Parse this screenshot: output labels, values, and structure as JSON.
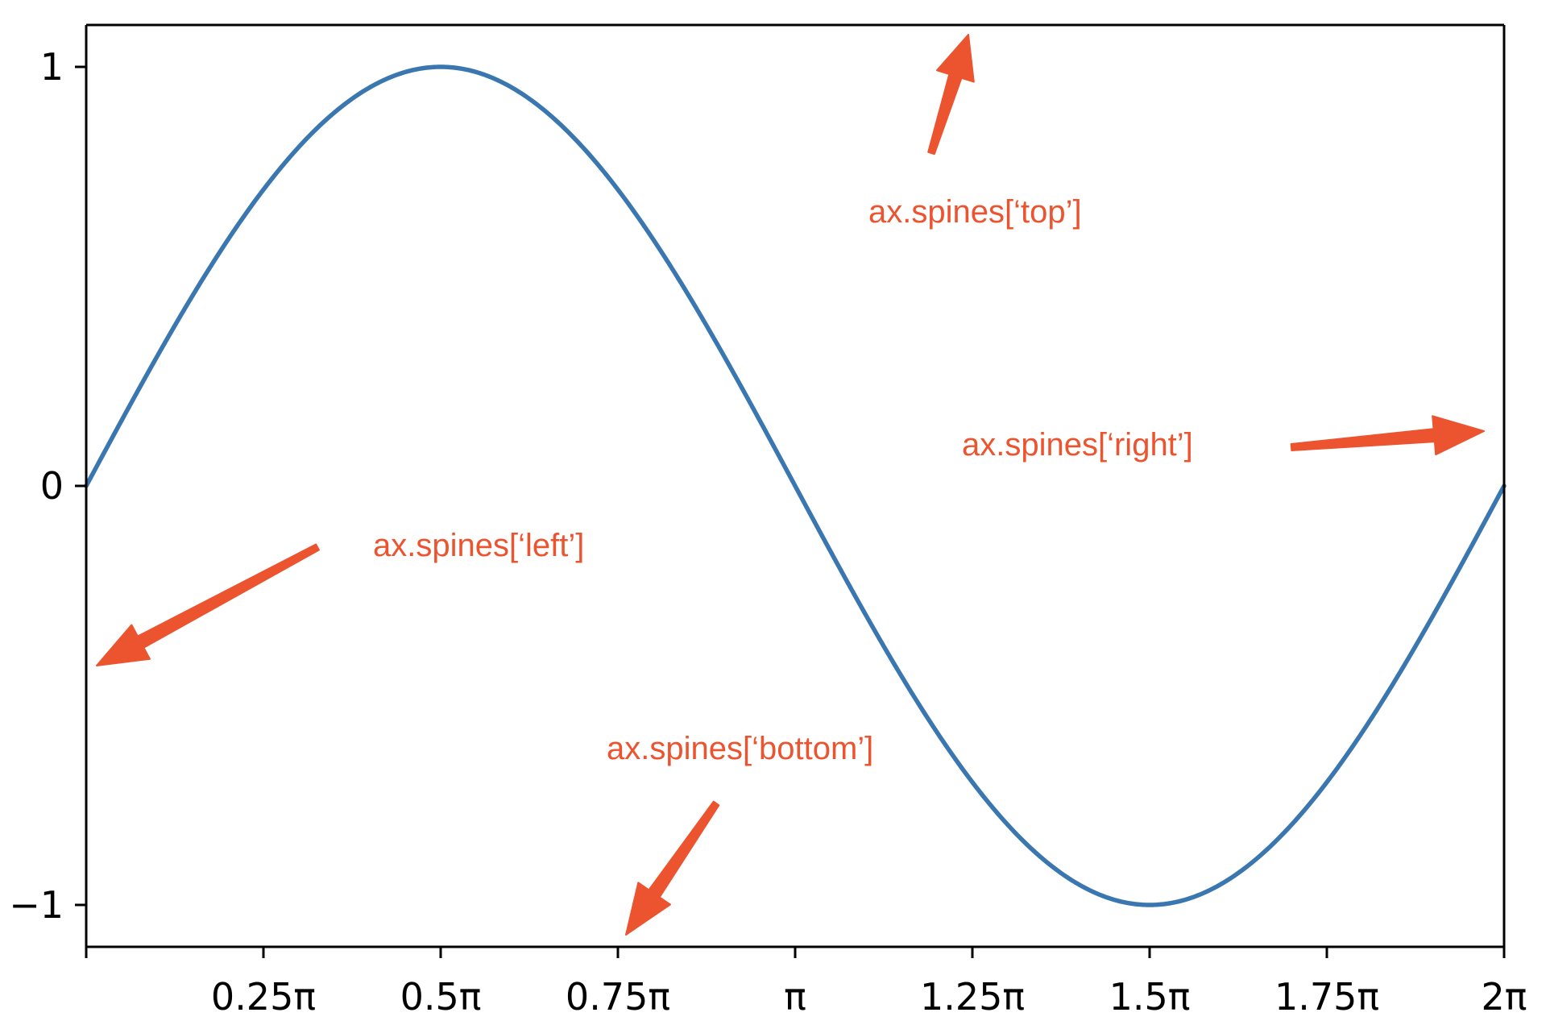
{
  "chart_data": {
    "type": "line",
    "series": [
      {
        "function": "sin(x)",
        "x_range": [
          0,
          6.283185307
        ],
        "color": "#3a76af"
      }
    ],
    "xlim": [
      0,
      6.283185307
    ],
    "ylim": [
      -1.1,
      1.1
    ],
    "xticks": [
      {
        "value": 0,
        "label": ""
      },
      {
        "value": 0.785398,
        "label": "0.25π"
      },
      {
        "value": 1.570796,
        "label": "0.5π"
      },
      {
        "value": 2.356194,
        "label": "0.75π"
      },
      {
        "value": 3.141593,
        "label": "π"
      },
      {
        "value": 3.926991,
        "label": "1.25π"
      },
      {
        "value": 4.712389,
        "label": "1.5π"
      },
      {
        "value": 5.497787,
        "label": "1.75π"
      },
      {
        "value": 6.283185,
        "label": "2π"
      }
    ],
    "yticks": [
      {
        "value": 1,
        "label": "1"
      },
      {
        "value": 0,
        "label": "0"
      },
      {
        "value": -1,
        "label": "−1"
      }
    ],
    "grid": false,
    "spine_color": "#000000",
    "annotations": [
      {
        "name": "top",
        "text": "ax.spines[‘top’]"
      },
      {
        "name": "right",
        "text": "ax.spines[‘right’]"
      },
      {
        "name": "left",
        "text": "ax.spines[‘left’]"
      },
      {
        "name": "bottom",
        "text": "ax.spines[‘bottom’]"
      }
    ],
    "annotation_color": "#ec5430"
  }
}
